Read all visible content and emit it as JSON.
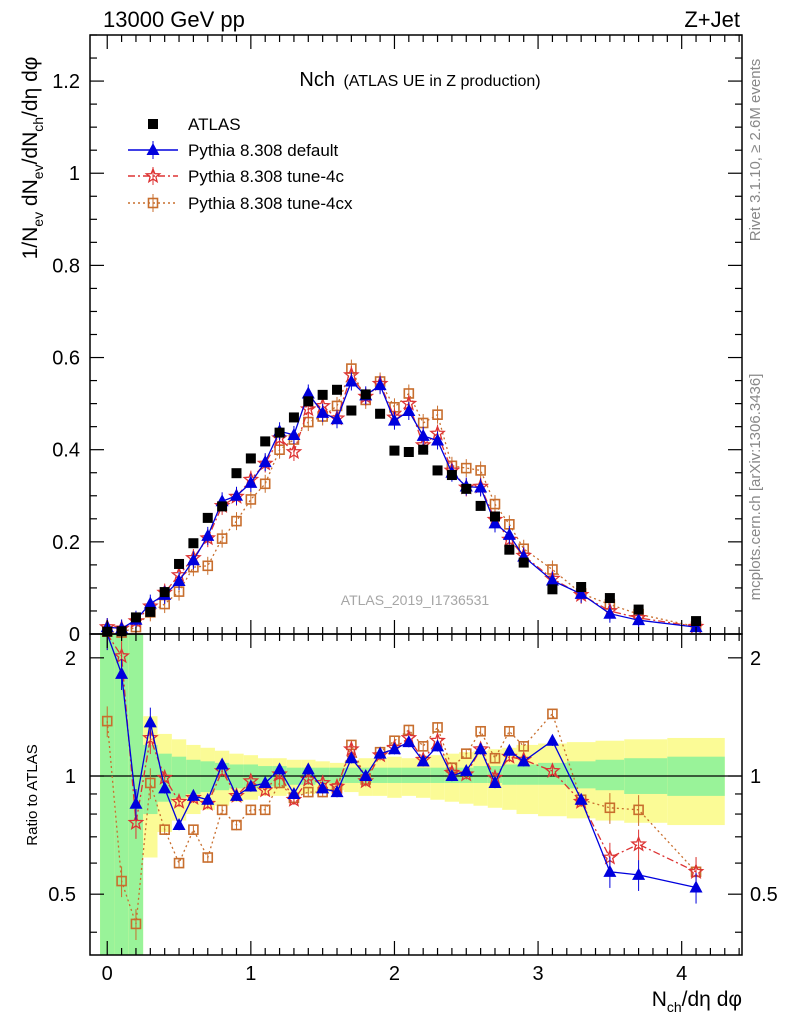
{
  "header": {
    "left": "13000 GeV pp",
    "right": "Z+Jet"
  },
  "title": {
    "main": "Nch",
    "sub": "(ATLAS UE in Z production)"
  },
  "side_labels": {
    "rivet": "Rivet 3.1.10, ≥ 2.6M events",
    "mcplots": "mcplots.cern.ch [arXiv:1306.3436]"
  },
  "watermark": "ATLAS_2019_I1736531",
  "colors": {
    "data": "#000000",
    "default": "#0000dd",
    "tune4c": "#dd3333",
    "tune4cx": "#c86e2d",
    "band_inner": "#99f399",
    "band_outer": "#fbfb96"
  },
  "chart_data": [
    {
      "type": "scatter",
      "panel": "main",
      "ylabel": "1/N_ev dN_ev/dN_ch/dη dφ",
      "xlim": [
        -0.12,
        4.42
      ],
      "ylim": [
        0,
        1.3
      ],
      "yticks": [
        "0",
        "0.2",
        "0.4",
        "0.6",
        "0.8",
        "1",
        "1.2"
      ],
      "x": [
        0.0,
        0.1,
        0.2,
        0.3,
        0.4,
        0.5,
        0.6,
        0.7,
        0.8,
        0.9,
        1.0,
        1.1,
        1.2,
        1.3,
        1.4,
        1.5,
        1.6,
        1.7,
        1.8,
        1.9,
        2.0,
        2.1,
        2.2,
        2.3,
        2.4,
        2.5,
        2.6,
        2.7,
        2.8,
        2.9,
        3.1,
        3.3,
        3.5,
        3.7,
        4.1
      ],
      "series": [
        {
          "name": "ATLAS",
          "marker": "square",
          "values": [
            0.005,
            0.006,
            0.036,
            0.048,
            0.091,
            0.152,
            0.197,
            0.252,
            0.277,
            0.349,
            0.381,
            0.418,
            0.437,
            0.47,
            0.505,
            0.519,
            0.53,
            0.485,
            0.52,
            0.478,
            0.398,
            0.395,
            0.4,
            0.355,
            0.345,
            0.315,
            0.278,
            0.255,
            0.183,
            0.155,
            0.097,
            0.102,
            0.078,
            0.053,
            0.028
          ]
        },
        {
          "name": "Pythia 8.308 default",
          "marker": "triangle",
          "values": [
            0.015,
            0.012,
            0.031,
            0.066,
            0.085,
            0.115,
            0.16,
            0.213,
            0.288,
            0.3,
            0.328,
            0.373,
            0.44,
            0.432,
            0.522,
            0.48,
            0.466,
            0.548,
            0.518,
            0.54,
            0.463,
            0.484,
            0.43,
            0.42,
            0.35,
            0.32,
            0.318,
            0.24,
            0.215,
            0.168,
            0.116,
            0.087,
            0.044,
            0.03,
            0.015
          ]
        },
        {
          "name": "Pythia 8.308 tune-4c",
          "marker": "star",
          "values": [
            0.015,
            0.012,
            0.028,
            0.06,
            0.09,
            0.128,
            0.165,
            0.208,
            0.278,
            0.298,
            0.335,
            0.37,
            0.425,
            0.395,
            0.488,
            0.495,
            0.468,
            0.562,
            0.515,
            0.543,
            0.47,
            0.5,
            0.41,
            0.435,
            0.355,
            0.318,
            0.32,
            0.248,
            0.205,
            0.17,
            0.12,
            0.085,
            0.05,
            0.035,
            0.016
          ]
        },
        {
          "name": "Pythia 8.308 tune-4cx",
          "marker": "open-square",
          "values": [
            0.005,
            0.003,
            0.015,
            0.047,
            0.065,
            0.092,
            0.145,
            0.148,
            0.207,
            0.245,
            0.292,
            0.326,
            0.4,
            0.422,
            0.46,
            0.472,
            0.495,
            0.576,
            0.508,
            0.548,
            0.492,
            0.522,
            0.458,
            0.476,
            0.365,
            0.36,
            0.355,
            0.282,
            0.238,
            0.185,
            0.14,
            0.088,
            0.064,
            0.043,
            0.016
          ]
        }
      ]
    },
    {
      "type": "line",
      "panel": "ratio",
      "ylabel": "Ratio to ATLAS",
      "xlabel": "N_ch/dη dφ",
      "xlim": [
        -0.12,
        4.42
      ],
      "ylim": [
        0.35,
        2.3
      ],
      "xticks": [
        "0",
        "1",
        "2",
        "3",
        "4"
      ],
      "yticks": [
        "0.5",
        "1",
        "2"
      ],
      "x": [
        0.0,
        0.1,
        0.2,
        0.3,
        0.4,
        0.5,
        0.6,
        0.7,
        0.8,
        0.9,
        1.0,
        1.1,
        1.2,
        1.3,
        1.4,
        1.5,
        1.6,
        1.7,
        1.8,
        1.9,
        2.0,
        2.1,
        2.2,
        2.3,
        2.4,
        2.5,
        2.6,
        2.7,
        2.8,
        2.9,
        3.1,
        3.3,
        3.5,
        3.7,
        4.1
      ],
      "series": [
        {
          "name": "Pythia 8.308 default",
          "values": [
            2.3,
            1.82,
            0.85,
            1.37,
            0.93,
            0.75,
            0.89,
            0.87,
            1.07,
            0.89,
            0.94,
            0.96,
            1.04,
            0.9,
            1.04,
            0.93,
            0.91,
            1.11,
            1.0,
            1.14,
            1.17,
            1.22,
            1.09,
            1.19,
            1.0,
            1.03,
            1.17,
            0.96,
            1.16,
            1.09,
            1.23,
            0.87,
            0.57,
            0.56,
            0.52
          ]
        },
        {
          "name": "Pythia 8.308 tune-4c",
          "values": [
            2.3,
            2.02,
            0.76,
            1.25,
            0.99,
            0.86,
            0.88,
            0.85,
            1.03,
            0.89,
            0.97,
            0.92,
            1.01,
            0.87,
            0.98,
            0.96,
            0.94,
            1.17,
            0.97,
            1.13,
            1.18,
            1.25,
            1.1,
            1.23,
            1.02,
            1.01,
            1.17,
            0.99,
            1.12,
            1.1,
            1.03,
            0.86,
            0.62,
            0.67,
            0.57
          ]
        },
        {
          "name": "Pythia 8.308 tune-4cx",
          "values": [
            1.38,
            0.54,
            0.42,
            0.96,
            0.73,
            0.6,
            0.73,
            0.62,
            0.82,
            0.75,
            0.82,
            0.82,
            0.96,
            0.88,
            0.91,
            0.91,
            0.93,
            1.2,
            0.98,
            1.15,
            1.23,
            1.31,
            1.19,
            1.33,
            1.05,
            1.14,
            1.3,
            1.11,
            1.3,
            1.19,
            1.44,
            0.87,
            0.83,
            0.82,
            0.57
          ]
        }
      ],
      "bands": {
        "edges": [
          -0.05,
          0.05,
          0.15,
          0.25,
          0.35,
          0.45,
          0.55,
          0.65,
          0.75,
          0.85,
          0.95,
          1.05,
          1.15,
          1.25,
          1.35,
          1.45,
          1.55,
          1.65,
          1.75,
          1.85,
          1.95,
          2.05,
          2.15,
          2.25,
          2.35,
          2.45,
          2.55,
          2.65,
          2.75,
          2.85,
          3.0,
          3.2,
          3.4,
          3.6,
          3.9,
          4.3
        ],
        "inner_lo": [
          0.35,
          0.35,
          0.35,
          0.8,
          0.86,
          0.88,
          0.9,
          0.91,
          0.92,
          0.93,
          0.93,
          0.94,
          0.94,
          0.95,
          0.95,
          0.96,
          0.96,
          0.96,
          0.96,
          0.96,
          0.96,
          0.96,
          0.96,
          0.96,
          0.96,
          0.96,
          0.96,
          0.96,
          0.95,
          0.95,
          0.95,
          0.93,
          0.92,
          0.9,
          0.89
        ],
        "inner_hi": [
          2.3,
          2.3,
          2.3,
          1.2,
          1.14,
          1.12,
          1.1,
          1.09,
          1.08,
          1.07,
          1.07,
          1.06,
          1.06,
          1.05,
          1.05,
          1.05,
          1.05,
          1.05,
          1.05,
          1.05,
          1.05,
          1.05,
          1.05,
          1.05,
          1.05,
          1.05,
          1.06,
          1.06,
          1.07,
          1.07,
          1.08,
          1.09,
          1.1,
          1.11,
          1.12
        ],
        "outer_lo": [
          0.35,
          0.35,
          0.35,
          0.62,
          0.72,
          0.77,
          0.8,
          0.82,
          0.84,
          0.86,
          0.87,
          0.89,
          0.89,
          0.9,
          0.9,
          0.91,
          0.92,
          0.91,
          0.89,
          0.89,
          0.88,
          0.89,
          0.88,
          0.87,
          0.86,
          0.85,
          0.84,
          0.83,
          0.82,
          0.8,
          0.79,
          0.78,
          0.77,
          0.76,
          0.75
        ],
        "outer_hi": [
          2.3,
          2.3,
          2.3,
          1.42,
          1.28,
          1.24,
          1.2,
          1.18,
          1.16,
          1.14,
          1.13,
          1.11,
          1.11,
          1.1,
          1.1,
          1.09,
          1.08,
          1.09,
          1.11,
          1.11,
          1.12,
          1.11,
          1.12,
          1.13,
          1.14,
          1.15,
          1.16,
          1.17,
          1.18,
          1.2,
          1.21,
          1.22,
          1.23,
          1.24,
          1.25
        ]
      }
    }
  ]
}
